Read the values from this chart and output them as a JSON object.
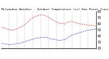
{
  "title": "Milwaukee Weather - Outdoor Temperature (vs) Dew Point (Last 24 Hours)",
  "bg_color": "#ffffff",
  "grid_color": "#aaaaaa",
  "temp_color": "#cc0000",
  "dew_color": "#0000bb",
  "n_points": 49,
  "temp_values": [
    55,
    54,
    53,
    52,
    51,
    50,
    50,
    51,
    52,
    54,
    55,
    57,
    59,
    62,
    65,
    68,
    70,
    72,
    73,
    74,
    75,
    75,
    74,
    73,
    71,
    69,
    67,
    65,
    63,
    62,
    61,
    61,
    60,
    62,
    63,
    64,
    64,
    63,
    62,
    61,
    60,
    60,
    59,
    59,
    58,
    58,
    58,
    57,
    57
  ],
  "dew_values": [
    28,
    28,
    27,
    27,
    26,
    26,
    27,
    27,
    28,
    28,
    29,
    30,
    31,
    32,
    33,
    34,
    35,
    36,
    37,
    37,
    38,
    38,
    38,
    38,
    37,
    36,
    35,
    35,
    34,
    33,
    33,
    34,
    34,
    36,
    38,
    40,
    42,
    43,
    44,
    45,
    46,
    47,
    48,
    49,
    50,
    50,
    51,
    51,
    52
  ],
  "ylim": [
    20,
    80
  ],
  "yticks": [
    20,
    30,
    40,
    50,
    60,
    70,
    80
  ],
  "xlim": [
    0,
    48
  ],
  "vline_positions": [
    4,
    8,
    12,
    16,
    20,
    24,
    28,
    32,
    36,
    40,
    44
  ],
  "title_fontsize": 3.2,
  "ylabel_fontsize": 3.5,
  "xlabel_fontsize": 3.0,
  "figwidth": 1.6,
  "figheight": 0.87,
  "dpi": 100
}
